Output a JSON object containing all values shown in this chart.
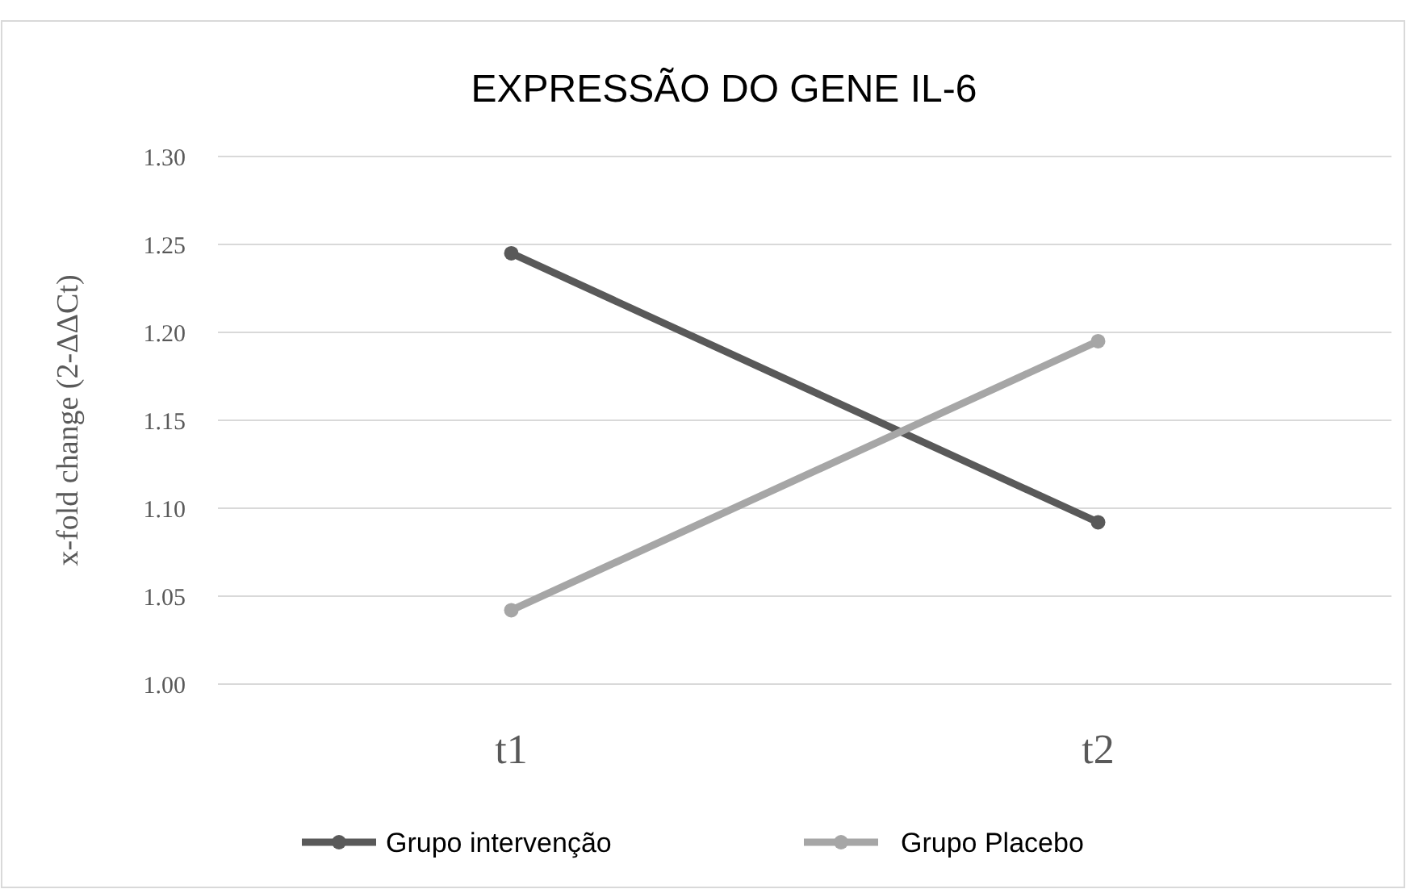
{
  "chart_data": {
    "type": "line",
    "title": "EXPRESSÃO DO GENE IL-6",
    "ylabel": "x-fold change (2-ΔΔCt)",
    "categories": [
      "t1",
      "t2"
    ],
    "series": [
      {
        "name": "Grupo intervenção",
        "color": "#595959",
        "values": [
          1.245,
          1.092
        ]
      },
      {
        "name": "Grupo Placebo",
        "color": "#a6a6a6",
        "values": [
          1.042,
          1.195
        ]
      }
    ],
    "ylim": [
      1.0,
      1.3
    ],
    "yticks": [
      {
        "value": 1.0,
        "label": "1.00"
      },
      {
        "value": 1.05,
        "label": "1.05"
      },
      {
        "value": 1.1,
        "label": "1.10"
      },
      {
        "value": 1.15,
        "label": "1.15"
      },
      {
        "value": 1.2,
        "label": "1.20"
      },
      {
        "value": 1.25,
        "label": "1.25"
      },
      {
        "value": 1.3,
        "label": "1.30"
      }
    ],
    "grid": "y",
    "legend": "bottom",
    "marker": "circle",
    "line_style": "solid"
  }
}
